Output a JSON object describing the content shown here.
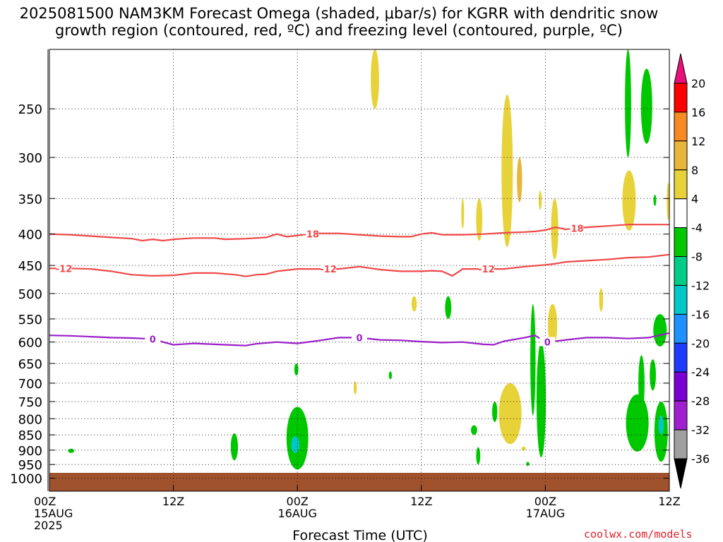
{
  "title": {
    "line1": "2025081500 NAM3KM Forecast Omega (shaded, μbar/s) for KGRR with dendritic snow",
    "line2": "growth region (contoured, red, ºC) and freezing level (contoured, purple, ºC)"
  },
  "watermark": "coolwx.com/models",
  "chart_data": {
    "type": "heatmap",
    "xlabel": "Forecast Time (UTC)",
    "ylabel": "",
    "x_unit": "forecast hours from 2025-08-15 00Z",
    "xlim": [
      0,
      60
    ],
    "x_ticks": [
      {
        "hour": 0,
        "lines": [
          "00Z",
          "15AUG",
          "2025"
        ]
      },
      {
        "hour": 12,
        "lines": [
          "12Z"
        ]
      },
      {
        "hour": 24,
        "lines": [
          "00Z",
          "16AUG"
        ]
      },
      {
        "hour": 36,
        "lines": [
          "12Z"
        ]
      },
      {
        "hour": 48,
        "lines": [
          "00Z",
          "17AUG"
        ]
      },
      {
        "hour": 60,
        "lines": [
          "12Z"
        ]
      }
    ],
    "y_unit": "hPa",
    "y_scale": "log",
    "ylim": [
      1050,
      200
    ],
    "y_ticks": [
      250,
      300,
      350,
      400,
      450,
      500,
      550,
      600,
      650,
      700,
      750,
      800,
      850,
      900,
      950,
      1000
    ],
    "grid": true,
    "ground_band_hpa": [
      1050,
      980
    ],
    "colorbar": {
      "levels": [
        20,
        16,
        12,
        8,
        4,
        -4,
        -8,
        -12,
        -16,
        -20,
        -24,
        -28,
        -32,
        -36
      ],
      "colors": [
        "#ff0000",
        "#f78a23",
        "#e8b63a",
        "#e8d23a",
        "#ffffff",
        "#00c800",
        "#00cc88",
        "#00c8c8",
        "#1e90ff",
        "#1e3cff",
        "#7a00d6",
        "#a020d0",
        "#a0a0a0"
      ],
      "top_arrow_color": "#e8107a",
      "bottom_arrow_color": "#000000"
    },
    "contours": [
      {
        "label": "-18",
        "color": "#f04848",
        "label_positions": [
          25.3,
          50.9
        ],
        "points": [
          [
            0,
            400
          ],
          [
            2,
            401
          ],
          [
            4,
            403
          ],
          [
            6,
            405
          ],
          [
            8,
            407
          ],
          [
            9,
            410
          ],
          [
            10,
            408
          ],
          [
            11,
            410
          ],
          [
            12,
            408
          ],
          [
            14,
            406
          ],
          [
            16,
            406
          ],
          [
            17,
            408
          ],
          [
            19,
            407
          ],
          [
            21,
            405
          ],
          [
            22,
            400
          ],
          [
            23,
            404
          ],
          [
            24,
            402
          ],
          [
            26,
            399
          ],
          [
            28,
            399
          ],
          [
            30,
            401
          ],
          [
            32,
            403
          ],
          [
            34,
            404
          ],
          [
            35,
            404
          ],
          [
            36,
            400
          ],
          [
            37,
            398
          ],
          [
            38,
            401
          ],
          [
            40,
            401
          ],
          [
            42,
            400
          ],
          [
            44,
            398
          ],
          [
            46,
            397
          ],
          [
            47,
            396
          ],
          [
            48,
            394
          ],
          [
            49,
            390
          ],
          [
            50,
            393
          ],
          [
            51,
            391
          ],
          [
            52,
            390
          ],
          [
            54,
            388
          ],
          [
            56,
            386
          ],
          [
            58,
            386
          ],
          [
            60,
            386
          ]
        ]
      },
      {
        "label": "-12",
        "color": "#f04848",
        "label_positions": [
          1.4,
          27.0,
          42.3
        ],
        "points": [
          [
            0,
            455
          ],
          [
            2,
            455
          ],
          [
            4,
            456
          ],
          [
            6,
            460
          ],
          [
            8,
            466
          ],
          [
            10,
            468
          ],
          [
            12,
            467
          ],
          [
            14,
            463
          ],
          [
            16,
            463
          ],
          [
            18,
            466
          ],
          [
            19,
            469
          ],
          [
            20,
            466
          ],
          [
            21,
            465
          ],
          [
            22,
            460
          ],
          [
            24,
            456
          ],
          [
            26,
            456
          ],
          [
            28,
            456
          ],
          [
            30,
            452
          ],
          [
            32,
            457
          ],
          [
            34,
            460
          ],
          [
            35,
            460
          ],
          [
            36,
            460
          ],
          [
            37,
            459
          ],
          [
            38,
            460
          ],
          [
            39,
            468
          ],
          [
            40,
            456
          ],
          [
            42,
            456
          ],
          [
            44,
            456
          ],
          [
            46,
            452
          ],
          [
            48,
            449
          ],
          [
            49,
            447
          ],
          [
            50,
            444
          ],
          [
            52,
            442
          ],
          [
            54,
            440
          ],
          [
            56,
            437
          ],
          [
            58,
            436
          ],
          [
            60,
            432
          ]
        ]
      },
      {
        "label": "0",
        "color": "#9a1ec8",
        "label_positions": [
          10.0,
          30.0,
          48.2
        ],
        "points": [
          [
            0,
            585
          ],
          [
            2,
            586
          ],
          [
            4,
            588
          ],
          [
            6,
            590
          ],
          [
            8,
            591
          ],
          [
            10,
            593
          ],
          [
            11,
            600
          ],
          [
            12,
            606
          ],
          [
            14,
            603
          ],
          [
            16,
            605
          ],
          [
            18,
            607
          ],
          [
            19,
            608
          ],
          [
            20,
            604
          ],
          [
            22,
            600
          ],
          [
            24,
            603
          ],
          [
            26,
            597
          ],
          [
            28,
            590
          ],
          [
            30,
            590
          ],
          [
            32,
            595
          ],
          [
            34,
            596
          ],
          [
            36,
            599
          ],
          [
            38,
            601
          ],
          [
            40,
            600
          ],
          [
            42,
            605
          ],
          [
            43,
            606
          ],
          [
            44,
            598
          ],
          [
            46,
            590
          ],
          [
            47,
            585
          ],
          [
            48,
            600
          ],
          [
            49,
            598
          ],
          [
            50,
            595
          ],
          [
            52,
            590
          ],
          [
            54,
            590
          ],
          [
            56,
            592
          ],
          [
            58,
            590
          ],
          [
            60,
            580
          ]
        ]
      }
    ],
    "regions": [
      {
        "hour": 2.1,
        "p0": 895,
        "p1": 910,
        "w": 0.6,
        "value": -6
      },
      {
        "hour": 17.9,
        "p0": 845,
        "p1": 935,
        "w": 0.7,
        "value": -6
      },
      {
        "hour": 24.0,
        "p0": 765,
        "p1": 968,
        "w": 2.1,
        "value": -7
      },
      {
        "hour": 23.8,
        "p0": 855,
        "p1": 910,
        "w": 0.8,
        "value": -14
      },
      {
        "hour": 23.9,
        "p0": 650,
        "p1": 680,
        "w": 0.4,
        "value": -6
      },
      {
        "hour": 31.5,
        "p0": 200,
        "p1": 250,
        "w": 0.8,
        "value": 6
      },
      {
        "hour": 29.6,
        "p0": 695,
        "p1": 730,
        "w": 0.3,
        "value": 5
      },
      {
        "hour": 33.0,
        "p0": 670,
        "p1": 690,
        "w": 0.3,
        "value": -6
      },
      {
        "hour": 35.3,
        "p0": 505,
        "p1": 535,
        "w": 0.5,
        "value": 6
      },
      {
        "hour": 38.6,
        "p0": 505,
        "p1": 550,
        "w": 0.6,
        "value": -6
      },
      {
        "hour": 41.1,
        "p0": 820,
        "p1": 850,
        "w": 0.6,
        "value": -6
      },
      {
        "hour": 40.0,
        "p0": 350,
        "p1": 392,
        "w": 0.2,
        "value": 5
      },
      {
        "hour": 41.6,
        "p0": 350,
        "p1": 410,
        "w": 0.6,
        "value": 6
      },
      {
        "hour": 43.1,
        "p0": 750,
        "p1": 810,
        "w": 0.5,
        "value": -6
      },
      {
        "hour": 41.5,
        "p0": 890,
        "p1": 950,
        "w": 0.4,
        "value": -6
      },
      {
        "hour": 44.3,
        "p0": 237,
        "p1": 420,
        "w": 1.1,
        "value": 6
      },
      {
        "hour": 44.6,
        "p0": 700,
        "p1": 880,
        "w": 2.2,
        "value": 6
      },
      {
        "hour": 45.5,
        "p0": 300,
        "p1": 355,
        "w": 0.5,
        "value": 9
      },
      {
        "hour": 46.3,
        "p0": 943,
        "p1": 953,
        "w": 0.3,
        "value": -6
      },
      {
        "hour": 46.8,
        "p0": 520,
        "p1": 790,
        "w": 0.5,
        "value": -7
      },
      {
        "hour": 47.6,
        "p0": 600,
        "p1": 925,
        "w": 0.9,
        "value": -7
      },
      {
        "hour": 48.9,
        "p0": 350,
        "p1": 440,
        "w": 0.7,
        "value": 6
      },
      {
        "hour": 48.7,
        "p0": 520,
        "p1": 610,
        "w": 0.9,
        "value": 6
      },
      {
        "hour": 47.5,
        "p0": 340,
        "p1": 365,
        "w": 0.3,
        "value": 5
      },
      {
        "hour": 53.4,
        "p0": 490,
        "p1": 535,
        "w": 0.4,
        "value": 5
      },
      {
        "hour": 56.0,
        "p0": 200,
        "p1": 300,
        "w": 0.6,
        "value": -7
      },
      {
        "hour": 57.8,
        "p0": 215,
        "p1": 285,
        "w": 1.1,
        "value": -7
      },
      {
        "hour": 56.1,
        "p0": 315,
        "p1": 395,
        "w": 1.3,
        "value": 6
      },
      {
        "hour": 58.6,
        "p0": 345,
        "p1": 360,
        "w": 0.2,
        "value": -6
      },
      {
        "hour": 59.9,
        "p0": 330,
        "p1": 380,
        "w": 0.3,
        "value": 5
      },
      {
        "hour": 58.4,
        "p0": 640,
        "p1": 720,
        "w": 0.6,
        "value": -6
      },
      {
        "hour": 59.1,
        "p0": 540,
        "p1": 610,
        "w": 1.3,
        "value": -7
      },
      {
        "hour": 56.9,
        "p0": 730,
        "p1": 905,
        "w": 2.2,
        "value": -7
      },
      {
        "hour": 59.2,
        "p0": 750,
        "p1": 940,
        "w": 1.3,
        "value": -7
      },
      {
        "hour": 59.2,
        "p0": 790,
        "p1": 850,
        "w": 0.5,
        "value": -12
      },
      {
        "hour": 57.3,
        "p0": 630,
        "p1": 780,
        "w": 0.6,
        "value": -7
      },
      {
        "hour": 45.9,
        "p0": 890,
        "p1": 900,
        "w": 0.4,
        "value": 6
      }
    ]
  }
}
